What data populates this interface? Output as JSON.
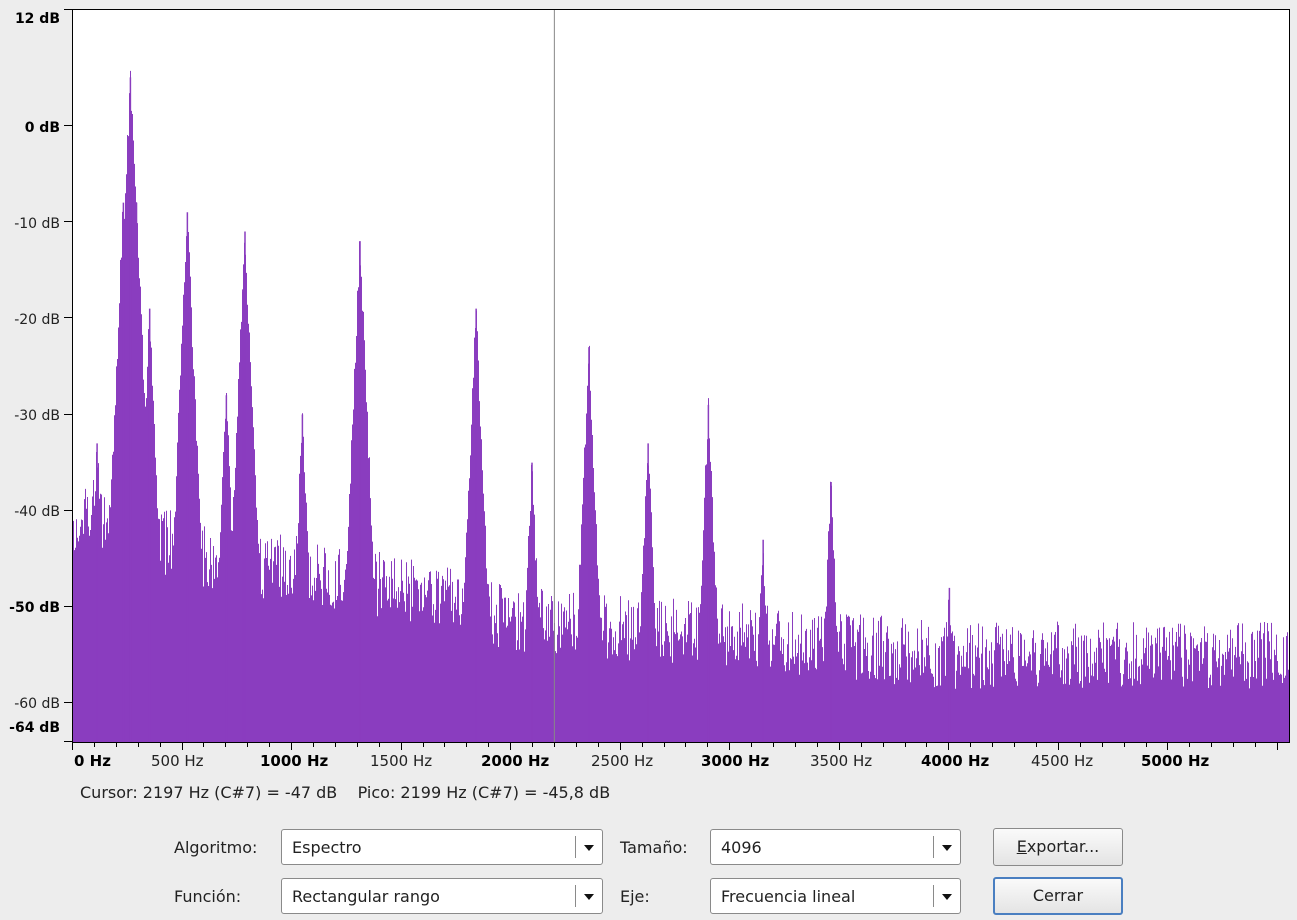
{
  "chart_data": {
    "type": "area",
    "xlabel": "",
    "ylabel": "",
    "xlim": [
      0,
      5550
    ],
    "ylim": [
      -64,
      12
    ],
    "grid": false,
    "color": "#8a3dbf",
    "y_ticks": [
      "12 dB",
      "0 dB",
      "-10 dB",
      "-20 dB",
      "-30 dB",
      "-40 dB",
      "-50 dB",
      "-60 dB",
      "-64 dB"
    ],
    "x_ticks": [
      "0 Hz",
      "500 Hz",
      "1000 Hz",
      "1500 Hz",
      "2000 Hz",
      "2500 Hz",
      "3000 Hz",
      "3500 Hz",
      "4000 Hz",
      "4500 Hz",
      "5000 Hz"
    ],
    "cursor_hz": 2197,
    "noise_floor": [
      {
        "hz": 0,
        "db": -41
      },
      {
        "hz": 100,
        "db": -40
      },
      {
        "hz": 600,
        "db": -45
      },
      {
        "hz": 1000,
        "db": -46
      },
      {
        "hz": 1500,
        "db": -48
      },
      {
        "hz": 2000,
        "db": -51
      },
      {
        "hz": 2500,
        "db": -52
      },
      {
        "hz": 3000,
        "db": -53
      },
      {
        "hz": 4000,
        "db": -55
      },
      {
        "hz": 5550,
        "db": -55
      }
    ],
    "peaks": [
      {
        "hz": 110,
        "db": -33
      },
      {
        "hz": 230,
        "db": -8
      },
      {
        "hz": 260,
        "db": -5
      },
      {
        "hz": 262,
        "db": 5
      },
      {
        "hz": 290,
        "db": -8
      },
      {
        "hz": 350,
        "db": -19
      },
      {
        "hz": 522,
        "db": -9
      },
      {
        "hz": 700,
        "db": -28
      },
      {
        "hz": 775,
        "db": -17
      },
      {
        "hz": 785,
        "db": -11
      },
      {
        "hz": 1047,
        "db": -30
      },
      {
        "hz": 1310,
        "db": -12
      },
      {
        "hz": 1840,
        "db": -19
      },
      {
        "hz": 2095,
        "db": -35
      },
      {
        "hz": 2355,
        "db": -23
      },
      {
        "hz": 2625,
        "db": -33
      },
      {
        "hz": 2900,
        "db": -29
      },
      {
        "hz": 3150,
        "db": -43
      },
      {
        "hz": 3460,
        "db": -37
      },
      {
        "hz": 4000,
        "db": -48
      }
    ]
  },
  "status": {
    "text": "Cursor: 2197 Hz (C#7) = -47 dB    Pico: 2199 Hz (C#7) = -45,8 dB"
  },
  "controls": {
    "algorithm_label": "Algoritmo:",
    "algorithm_value": "Espectro",
    "size_label": "Tamaño:",
    "size_value": "4096",
    "function_label": "Función:",
    "function_value": "Rectangular rango",
    "axis_label": "Eje:",
    "axis_value": "Frecuencia lineal",
    "export_mnemonic": "E",
    "export_rest": "xportar...",
    "close_label": "Cerrar"
  },
  "icons": {
    "combo_arrow": "chevron-down-icon"
  }
}
